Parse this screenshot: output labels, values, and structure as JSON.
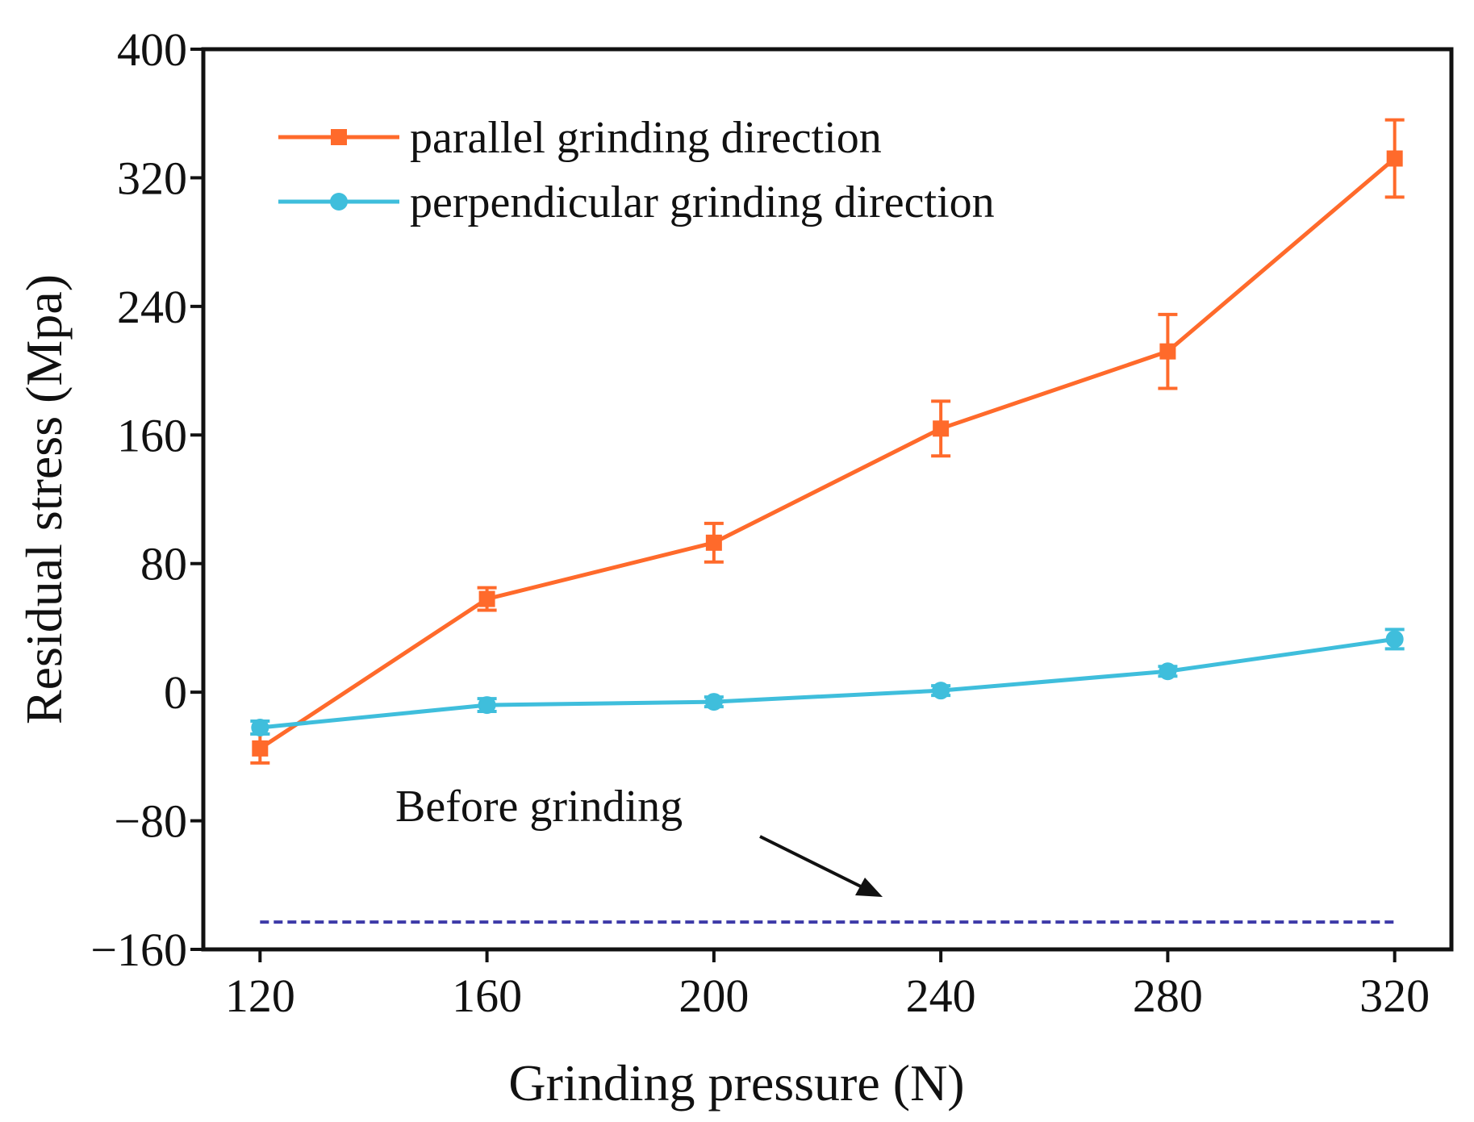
{
  "chart_data": {
    "type": "line",
    "title": "",
    "xlabel": "Grinding pressure (N)",
    "ylabel": "Residual stress (Mpa)",
    "x": [
      120,
      160,
      200,
      240,
      280,
      320
    ],
    "x_ticks": [
      "120",
      "160",
      "200",
      "240",
      "280",
      "320"
    ],
    "y_ticks": [
      "400",
      "320",
      "240",
      "160",
      "80",
      "0",
      "−80",
      "−160"
    ],
    "xlim": [
      110,
      330
    ],
    "ylim": [
      -160,
      400
    ],
    "legend_position": "top-left",
    "series": [
      {
        "name": "parallel grinding direction",
        "color": "#ff6a2b",
        "marker": "square",
        "values": [
          -35,
          58,
          93,
          164,
          212,
          332
        ],
        "errors": [
          9,
          7,
          12,
          17,
          23,
          24
        ]
      },
      {
        "name": "perpendicular grinding direction",
        "color": "#3fbedc",
        "marker": "circle",
        "values": [
          -22,
          -8,
          -6,
          1,
          13,
          33
        ],
        "errors": [
          4,
          4,
          3,
          3,
          3,
          6
        ]
      }
    ],
    "reference_line": {
      "label": "Before grinding",
      "value": -143,
      "color": "#3d3aa8",
      "style": "dashed"
    }
  }
}
